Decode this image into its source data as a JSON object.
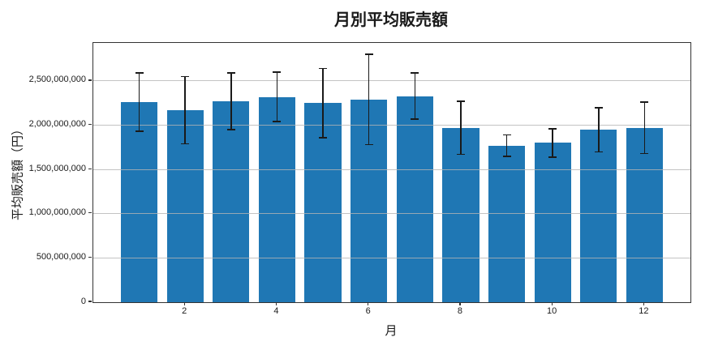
{
  "title": "月別平均販売額",
  "colors": {
    "bar": "#1f77b4",
    "grid": "#b4b4b4",
    "spine": "#333333",
    "error_bar": "#1a1a1a",
    "background": "#ffffff"
  },
  "chart_data": {
    "type": "bar",
    "title": "月別平均販売額",
    "xlabel": "月",
    "ylabel": "平均販売額（円）",
    "categories": [
      1,
      2,
      3,
      4,
      5,
      6,
      7,
      8,
      9,
      10,
      11,
      12
    ],
    "values": [
      2260000000,
      2170000000,
      2270000000,
      2320000000,
      2250000000,
      2290000000,
      2330000000,
      1970000000,
      1770000000,
      1800000000,
      1950000000,
      1970000000
    ],
    "error_bars": [
      330000000,
      380000000,
      320000000,
      280000000,
      390000000,
      510000000,
      260000000,
      300000000,
      120000000,
      160000000,
      250000000,
      290000000
    ],
    "y_ticks": [
      0,
      500000000,
      1000000000,
      1500000000,
      2000000000,
      2500000000
    ],
    "y_tick_labels": [
      "0",
      "500,000,000",
      "1,000,000,000",
      "1,500,000,000",
      "2,000,000,000",
      "2,500,000,000"
    ],
    "x_tick_values": [
      2,
      4,
      6,
      8,
      10,
      12
    ],
    "x_tick_labels": [
      "2",
      "4",
      "6",
      "8",
      "10",
      "12"
    ],
    "ylim": [
      0,
      2930000000
    ],
    "xlim": [
      0,
      13
    ],
    "bar_width": 0.8,
    "grid": "horizontal",
    "legend": null
  }
}
